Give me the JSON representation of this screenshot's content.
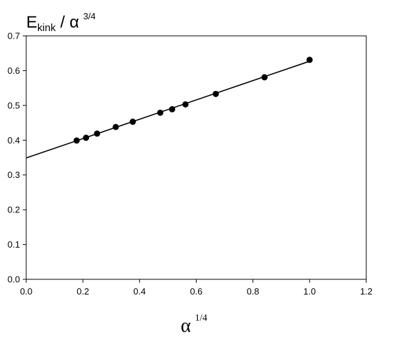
{
  "chart_data": {
    "type": "scatter",
    "title": "",
    "ylabel": {
      "base": "E",
      "subscript": "kink",
      "separator": " / ",
      "symbol": "α",
      "superscript": "3/4"
    },
    "xlabel": {
      "symbol": "α",
      "superscript": "1/4"
    },
    "xlim": [
      0.0,
      1.2
    ],
    "ylim": [
      0.0,
      0.7
    ],
    "xticks": [
      0.0,
      0.2,
      0.4,
      0.6,
      0.8,
      1.0,
      1.2
    ],
    "xtick_labels": [
      "0.0",
      "0.2",
      "0.4",
      "0.6",
      "0.8",
      "1.0",
      "1.2"
    ],
    "yticks": [
      0.0,
      0.1,
      0.2,
      0.3,
      0.4,
      0.5,
      0.6,
      0.7
    ],
    "ytick_labels": [
      "0.0",
      "0.1",
      "0.2",
      "0.3",
      "0.4",
      "0.5",
      "0.6",
      "0.7"
    ],
    "grid": false,
    "points": {
      "x": [
        0.178,
        0.211,
        0.25,
        0.316,
        0.376,
        0.473,
        0.515,
        0.562,
        0.669,
        0.841,
        1.0
      ],
      "y": [
        0.399,
        0.407,
        0.419,
        0.438,
        0.453,
        0.479,
        0.489,
        0.503,
        0.533,
        0.581,
        0.631
      ]
    },
    "fit_line": {
      "x": [
        0.0,
        1.0
      ],
      "y": [
        0.349,
        0.627
      ]
    },
    "colors": {
      "marker": "#000000",
      "line": "#000000",
      "axis": "#000000"
    }
  }
}
